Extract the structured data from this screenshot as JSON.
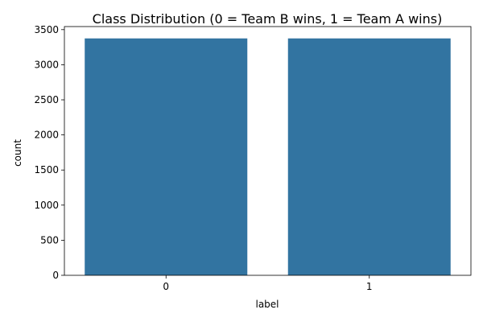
{
  "chart_data": {
    "type": "bar",
    "title": "Class Distribution (0 = Team B wins, 1 = Team A wins)",
    "xlabel": "label",
    "ylabel": "count",
    "categories": [
      "0",
      "1"
    ],
    "values": [
      3375,
      3375
    ],
    "ylim": [
      0,
      3543.75
    ],
    "yticks": [
      0,
      500,
      1000,
      1500,
      2000,
      2500,
      3000,
      3500
    ],
    "bar_color": "#3274a1",
    "grid": false,
    "legend": "none"
  }
}
